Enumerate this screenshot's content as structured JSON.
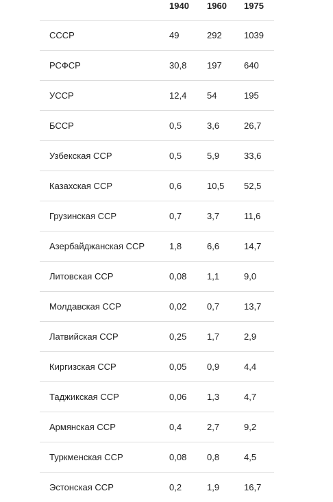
{
  "table": {
    "headers": [
      "",
      "1940",
      "1960",
      "1975"
    ],
    "rows": [
      {
        "name": "СССР",
        "v1940": "49",
        "v1960": "292",
        "v1975": "1039"
      },
      {
        "name": "РСФСР",
        "v1940": "30,8",
        "v1960": "197",
        "v1975": "640"
      },
      {
        "name": "УССР",
        "v1940": "12,4",
        "v1960": "54",
        "v1975": "195"
      },
      {
        "name": "БССР",
        "v1940": "0,5",
        "v1960": "3,6",
        "v1975": "26,7"
      },
      {
        "name": "Узбекская ССР",
        "v1940": "0,5",
        "v1960": "5,9",
        "v1975": "33,6"
      },
      {
        "name": "Казахская ССР",
        "v1940": "0,6",
        "v1960": "10,5",
        "v1975": "52,5"
      },
      {
        "name": "Грузинская ССР",
        "v1940": "0,7",
        "v1960": "3,7",
        "v1975": "11,6"
      },
      {
        "name": "Азербайджанская ССР",
        "v1940": "1,8",
        "v1960": "6,6",
        "v1975": "14,7"
      },
      {
        "name": "Литовская ССР",
        "v1940": "0,08",
        "v1960": "1,1",
        "v1975": "9,0"
      },
      {
        "name": "Молдавская ССР",
        "v1940": "0,02",
        "v1960": "0,7",
        "v1975": "13,7"
      },
      {
        "name": "Латвийская ССР",
        "v1940": "0,25",
        "v1960": "1,7",
        "v1975": "2,9"
      },
      {
        "name": "Киргизская ССР",
        "v1940": "0,05",
        "v1960": "0,9",
        "v1975": "4,4"
      },
      {
        "name": "Таджикская ССР",
        "v1940": "0,06",
        "v1960": "1,3",
        "v1975": "4,7"
      },
      {
        "name": "Армянская ССР",
        "v1940": "0,4",
        "v1960": "2,7",
        "v1975": "9,2"
      },
      {
        "name": "Туркменская ССР",
        "v1940": "0,08",
        "v1960": "0,8",
        "v1975": "4,5"
      },
      {
        "name": "Эстонская ССР",
        "v1940": "0,2",
        "v1960": "1,9",
        "v1975": "16,7"
      }
    ]
  }
}
